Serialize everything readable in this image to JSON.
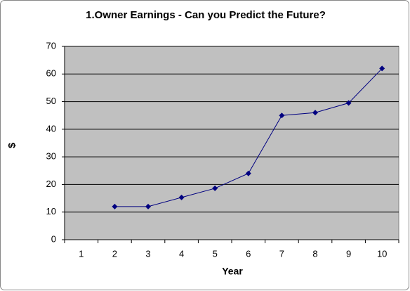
{
  "chart_data": {
    "type": "line",
    "title": "1.Owner Earnings - Can you Predict the Future?",
    "x_label": "Year",
    "y_label": "$",
    "categories": [
      "1",
      "2",
      "3",
      "4",
      "5",
      "6",
      "7",
      "8",
      "9",
      "10"
    ],
    "values": [
      null,
      12,
      12,
      15.3,
      18.6,
      24,
      45,
      46,
      49.5,
      62
    ],
    "color": "#000080",
    "plot_background": "#c0c0c0",
    "ylim": [
      0,
      70
    ],
    "yticks": [
      0,
      10,
      20,
      30,
      40,
      50,
      60,
      70
    ],
    "grid": true
  }
}
